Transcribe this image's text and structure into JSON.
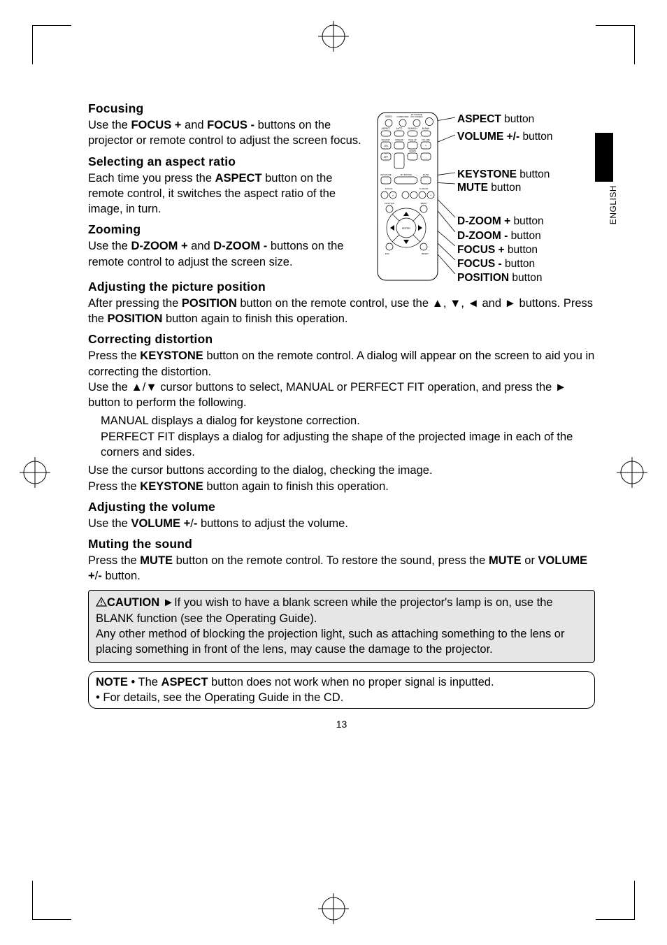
{
  "pageNumber": "13",
  "sideTab": "ENGLISH",
  "sections": {
    "focusing": {
      "heading": "Focusing",
      "body": "Use the <b>FOCUS +</b> and <b>FOCUS -</b> buttons on the projector or remote control to adjust the screen focus."
    },
    "aspect": {
      "heading": "Selecting an aspect ratio",
      "body": "Each time you press the <b>ASPECT</b> button on the remote control, it switches the aspect ratio of the image, in turn."
    },
    "zooming": {
      "heading": "Zooming",
      "body": "Use the <b>D-ZOOM +</b> and <b>D-ZOOM -</b> buttons on the remote control to adjust the screen size."
    },
    "position": {
      "heading": "Adjusting the picture position",
      "body": "After pressing the <b>POSITION</b> button on the remote control, use the ▲, ▼, ◄ and ► buttons. Press the <b>POSITION</b> button again to finish this operation."
    },
    "distortion": {
      "heading": "Correcting distortion",
      "p1": "Press the <b>KEYSTONE</b> button on the remote control. A dialog will appear on the screen to aid you in correcting the distortion.",
      "p2": "Use the ▲/▼ cursor buttons to select, MANUAL or PERFECT FIT operation, and press the ► button to perform the following.",
      "p3": "MANUAL displays a dialog for keystone correction.",
      "p4": "PERFECT FIT displays a dialog for adjusting the shape of the projected image in each of the corners and sides.",
      "p5": "Use the cursor buttons according to the dialog, checking the image.",
      "p6": "Press the <b>KEYSTONE</b> button again to finish this operation."
    },
    "volume": {
      "heading": "Adjusting the volume",
      "body": "Use the <b>VOLUME +</b>/<b>-</b> buttons to adjust the volume."
    },
    "mute": {
      "heading": "Muting the sound",
      "body": "Press the <b>MUTE</b> button on the remote control. To restore the sound, press the <b>MUTE</b> or <b>VOLUME +</b>/<b>-</b> button."
    }
  },
  "caution": {
    "label": "CAUTION",
    "body": "►If you wish to have a blank screen while the projector's lamp is on, use the BLANK function (see the Operating Guide).<br>Any other method of blocking the projection light, such as attaching something to the lens or placing something in front of the lens, may cause the damage to the projector."
  },
  "note": {
    "label": "NOTE",
    "body": "• The <b>ASPECT</b> button does not work when no proper signal is inputted.<br>• For details, see the Operating Guide in the CD."
  },
  "remote": {
    "labels": [
      "<b>ASPECT</b> button",
      "<b>VOLUME +/-</b> button",
      "<b>KEYSTONE</b> button",
      "<b>MUTE</b> button",
      "<b>D-ZOOM +</b> button",
      "<b>D-ZOOM -</b> button",
      "<b>FOCUS +</b> button",
      "<b>FOCUS -</b> button",
      "<b>POSITION</b> button"
    ],
    "label_offsets": [
      17,
      42,
      96,
      115,
      163,
      184,
      204,
      224,
      244
    ],
    "button_text": {
      "r1": [
        "VIDEO",
        "COMPUTER",
        "MY SOURCE/\nDOC.CAMERA"
      ],
      "r2": [
        "ASPECT",
        "AUTO",
        "SEARCH",
        "BLANK"
      ],
      "r3": [
        "MAGNIFY",
        "FREEZE",
        "PAGE UP",
        "VOLUME"
      ],
      "r3b": [
        "ON",
        "",
        "",
        "+"
      ],
      "r4": [
        "OFF",
        "",
        "DOWN",
        "-"
      ],
      "r5l": "KEYSTONE",
      "r5r": "MUTE",
      "r5c": "MY BUTTON\n1          2",
      "r6": [
        "FOCUS",
        "",
        "D-ZOOM"
      ],
      "r6b": [
        "-",
        "+",
        "-",
        "+"
      ],
      "pos": "POSITION",
      "menu": "MENU",
      "esc": "ESC",
      "reset": "RESET",
      "enter": "ENTER"
    },
    "colors": {
      "outline": "#000000",
      "fill": "#ffffff",
      "btn_stroke": "#231f20",
      "text": "#231f20"
    }
  },
  "style": {
    "heading_fontsize_pt": 13,
    "body_fontsize_pt": 12.5,
    "caution_bg": "#e6e6e6",
    "page_bg": "#ffffff"
  }
}
